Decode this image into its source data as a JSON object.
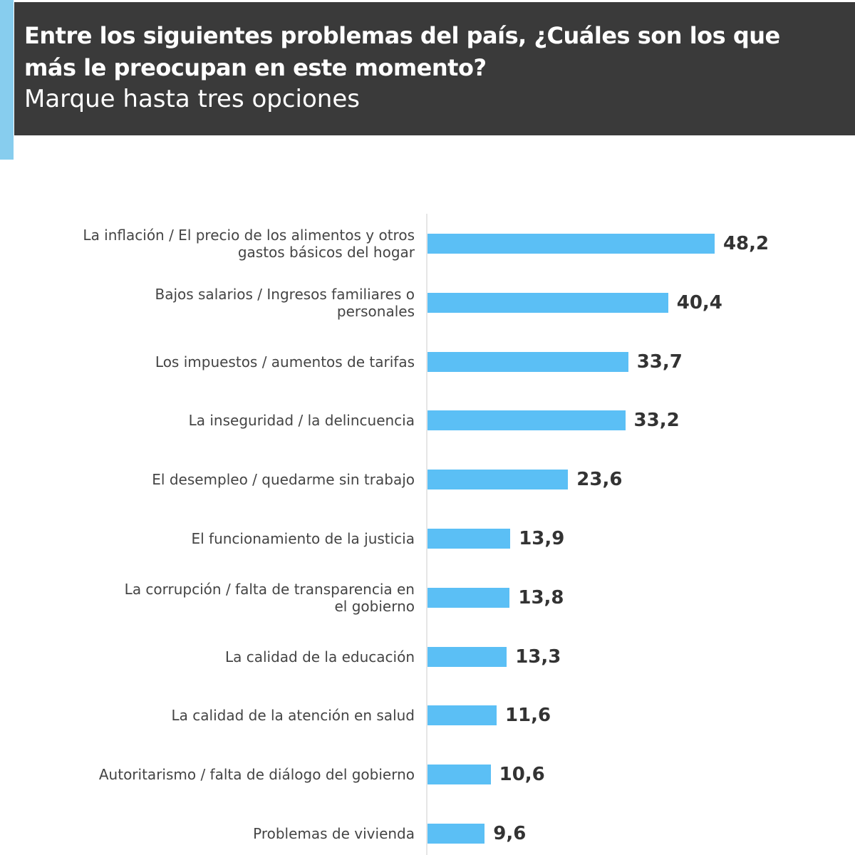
{
  "chart_data": {
    "type": "bar",
    "orientation": "horizontal",
    "title": "Entre los siguientes problemas del país, ¿Cuáles son los que más le preocupan en este momento?",
    "subtitle": "Marque hasta tres opciones",
    "categories": [
      "La inflación / El precio de los alimentos y otros gastos básicos del hogar",
      "Bajos salarios / Ingresos familiares o personales",
      "Los impuestos / aumentos de tarifas",
      "La inseguridad / la delincuencia",
      "El desempleo / quedarme sin trabajo",
      "El funcionamiento de la justicia",
      "La corrupción / falta de transparencia en el gobierno",
      "La calidad de la educación",
      "La calidad de la atención en salud",
      "Autoritarismo / falta de diálogo del gobierno",
      "Problemas de vivienda"
    ],
    "values": [
      48.2,
      40.4,
      33.7,
      33.2,
      23.6,
      13.9,
      13.8,
      13.3,
      11.6,
      10.6,
      9.6
    ],
    "value_labels": [
      "48,2",
      "40,4",
      "33,7",
      "33,2",
      "23,6",
      "13,9",
      "13,8",
      "13,3",
      "11,6",
      "10,6",
      "9,6"
    ],
    "xlim": [
      0,
      60
    ],
    "grid": false,
    "bar_color": "#5bbff5"
  }
}
